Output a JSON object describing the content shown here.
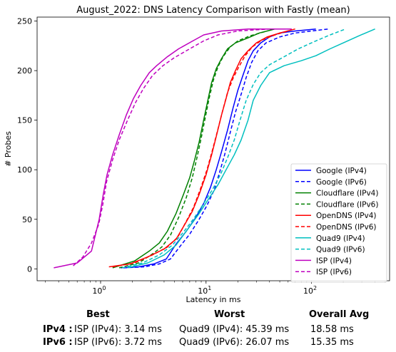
{
  "chart_data": {
    "type": "line",
    "title": "August_2022: DNS Latency Comparison with Fastly (mean)",
    "xlabel": "Latency in ms",
    "ylabel": "# Probes",
    "xscale": "log",
    "xlim": [
      0.25,
      550
    ],
    "ylim": [
      -12,
      254
    ],
    "x_ticks": [
      1,
      10,
      100
    ],
    "x_tick_labels": [
      "10^0",
      "10^1",
      "10^2"
    ],
    "y_ticks": [
      0,
      50,
      100,
      150,
      200,
      250
    ],
    "grid": false,
    "legend_position": "lower-right",
    "series": [
      {
        "name": "Google (IPv4)",
        "color": "#0000ff",
        "dash": "solid",
        "points": [
          [
            1.55,
            1
          ],
          [
            2.3,
            2
          ],
          [
            3.2,
            5
          ],
          [
            4.2,
            10
          ],
          [
            5.2,
            25
          ],
          [
            6.5,
            38
          ],
          [
            8,
            52
          ],
          [
            9.5,
            66
          ],
          [
            11,
            82
          ],
          [
            12.5,
            100
          ],
          [
            14,
            118
          ],
          [
            16,
            140
          ],
          [
            18,
            162
          ],
          [
            20,
            180
          ],
          [
            22.5,
            196
          ],
          [
            25,
            210
          ],
          [
            28,
            220
          ],
          [
            33,
            228
          ],
          [
            40,
            234
          ],
          [
            50,
            238
          ],
          [
            70,
            240
          ],
          [
            110,
            242
          ]
        ]
      },
      {
        "name": "Google (IPv6)",
        "color": "#0000ff",
        "dash": "dashed",
        "points": [
          [
            1.65,
            1
          ],
          [
            2.6,
            2
          ],
          [
            3.6,
            5
          ],
          [
            4.6,
            10
          ],
          [
            5.6,
            22
          ],
          [
            7,
            35
          ],
          [
            8.6,
            50
          ],
          [
            10.2,
            64
          ],
          [
            12,
            80
          ],
          [
            13.5,
            98
          ],
          [
            15,
            115
          ],
          [
            17,
            138
          ],
          [
            19,
            158
          ],
          [
            21.5,
            176
          ],
          [
            24,
            193
          ],
          [
            27,
            208
          ],
          [
            31,
            220
          ],
          [
            37,
            228
          ],
          [
            50,
            234
          ],
          [
            70,
            238
          ],
          [
            100,
            240
          ],
          [
            145,
            242
          ]
        ]
      },
      {
        "name": "Cloudflare (IPv4)",
        "color": "#008000",
        "dash": "solid",
        "points": [
          [
            1.3,
            1
          ],
          [
            2.1,
            8
          ],
          [
            2.9,
            18
          ],
          [
            3.6,
            26
          ],
          [
            4.3,
            38
          ],
          [
            5.2,
            56
          ],
          [
            6.1,
            75
          ],
          [
            7,
            92
          ],
          [
            7.8,
            110
          ],
          [
            8.6,
            128
          ],
          [
            9.4,
            148
          ],
          [
            10.3,
            168
          ],
          [
            11.3,
            188
          ],
          [
            12.5,
            202
          ],
          [
            14,
            212
          ],
          [
            16,
            222
          ],
          [
            19,
            228
          ],
          [
            25,
            233
          ],
          [
            32,
            238
          ],
          [
            45,
            242
          ]
        ]
      },
      {
        "name": "Cloudflare (IPv6)",
        "color": "#008000",
        "dash": "dashed",
        "points": [
          [
            1.5,
            1
          ],
          [
            2.3,
            6
          ],
          [
            3.1,
            15
          ],
          [
            3.8,
            22
          ],
          [
            4.6,
            34
          ],
          [
            5.5,
            52
          ],
          [
            6.5,
            72
          ],
          [
            7.4,
            92
          ],
          [
            8.2,
            112
          ],
          [
            9,
            132
          ],
          [
            9.8,
            152
          ],
          [
            10.7,
            172
          ],
          [
            11.7,
            190
          ],
          [
            13,
            204
          ],
          [
            14.5,
            214
          ],
          [
            17,
            224
          ],
          [
            20,
            230
          ],
          [
            26,
            235
          ],
          [
            38,
            240
          ]
        ]
      },
      {
        "name": "OpenDNS (IPv4)",
        "color": "#ff0000",
        "dash": "solid",
        "points": [
          [
            1.2,
            2
          ],
          [
            1.9,
            5
          ],
          [
            2.8,
            12
          ],
          [
            4,
            20
          ],
          [
            5.2,
            30
          ],
          [
            6.3,
            45
          ],
          [
            7.4,
            58
          ],
          [
            8.6,
            75
          ],
          [
            10,
            95
          ],
          [
            11.3,
            115
          ],
          [
            12.6,
            135
          ],
          [
            14,
            155
          ],
          [
            15.5,
            172
          ],
          [
            17,
            188
          ],
          [
            19,
            200
          ],
          [
            21.5,
            212
          ],
          [
            25,
            220
          ],
          [
            30,
            228
          ],
          [
            38,
            234
          ],
          [
            50,
            238
          ],
          [
            70,
            242
          ]
        ]
      },
      {
        "name": "OpenDNS (IPv6)",
        "color": "#ff0000",
        "dash": "dashed",
        "points": [
          [
            1.3,
            2
          ],
          [
            2.1,
            6
          ],
          [
            3.1,
            14
          ],
          [
            4.3,
            22
          ],
          [
            5.4,
            32
          ],
          [
            6.5,
            48
          ],
          [
            7.6,
            62
          ],
          [
            8.8,
            80
          ],
          [
            10.2,
            100
          ],
          [
            11.5,
            120
          ],
          [
            12.9,
            140
          ],
          [
            14.4,
            160
          ],
          [
            16,
            178
          ],
          [
            18,
            192
          ],
          [
            20.5,
            204
          ],
          [
            23.5,
            215
          ],
          [
            27.5,
            224
          ],
          [
            34,
            231
          ],
          [
            45,
            236
          ],
          [
            60,
            240
          ]
        ]
      },
      {
        "name": "Quad9 (IPv4)",
        "color": "#00bfbf",
        "dash": "solid",
        "points": [
          [
            1.8,
            1
          ],
          [
            2.8,
            6
          ],
          [
            4,
            14
          ],
          [
            5.2,
            24
          ],
          [
            6.7,
            40
          ],
          [
            8.5,
            55
          ],
          [
            10.5,
            70
          ],
          [
            13,
            85
          ],
          [
            15.5,
            100
          ],
          [
            18.5,
            115
          ],
          [
            21.5,
            130
          ],
          [
            25,
            150
          ],
          [
            28,
            170
          ],
          [
            33,
            185
          ],
          [
            40,
            198
          ],
          [
            55,
            205
          ],
          [
            80,
            210
          ],
          [
            110,
            215
          ],
          [
            150,
            222
          ],
          [
            200,
            228
          ],
          [
            280,
            235
          ],
          [
            400,
            242
          ]
        ]
      },
      {
        "name": "Quad9 (IPv6)",
        "color": "#00bfbf",
        "dash": "dashed",
        "points": [
          [
            1.6,
            1
          ],
          [
            2.5,
            6
          ],
          [
            3.6,
            14
          ],
          [
            4.8,
            24
          ],
          [
            6.2,
            38
          ],
          [
            7.8,
            52
          ],
          [
            9.5,
            66
          ],
          [
            11.5,
            80
          ],
          [
            13.8,
            96
          ],
          [
            16,
            112
          ],
          [
            18.5,
            130
          ],
          [
            21,
            150
          ],
          [
            24,
            170
          ],
          [
            28,
            186
          ],
          [
            33,
            198
          ],
          [
            40,
            206
          ],
          [
            55,
            214
          ],
          [
            75,
            222
          ],
          [
            110,
            230
          ],
          [
            150,
            236
          ],
          [
            210,
            242
          ]
        ]
      },
      {
        "name": "ISP (IPv4)",
        "color": "#bf00bf",
        "dash": "solid",
        "points": [
          [
            0.36,
            1
          ],
          [
            0.6,
            6
          ],
          [
            0.82,
            18
          ],
          [
            0.97,
            50
          ],
          [
            1.06,
            75
          ],
          [
            1.15,
            95
          ],
          [
            1.3,
            115
          ],
          [
            1.5,
            135
          ],
          [
            1.75,
            155
          ],
          [
            2.05,
            172
          ],
          [
            2.4,
            185
          ],
          [
            2.9,
            198
          ],
          [
            3.4,
            205
          ],
          [
            4.3,
            214
          ],
          [
            5.5,
            222
          ],
          [
            7.5,
            230
          ],
          [
            9.5,
            236
          ],
          [
            14,
            240
          ],
          [
            25,
            242
          ],
          [
            65,
            242
          ]
        ]
      },
      {
        "name": "ISP (IPv6)",
        "color": "#bf00bf",
        "dash": "dashed",
        "points": [
          [
            0.55,
            3
          ],
          [
            0.68,
            12
          ],
          [
            0.82,
            26
          ],
          [
            0.96,
            45
          ],
          [
            1.05,
            65
          ],
          [
            1.14,
            88
          ],
          [
            1.3,
            110
          ],
          [
            1.5,
            130
          ],
          [
            1.8,
            150
          ],
          [
            2.15,
            168
          ],
          [
            2.55,
            182
          ],
          [
            3.1,
            195
          ],
          [
            3.9,
            205
          ],
          [
            5,
            213
          ],
          [
            7,
            222
          ],
          [
            9.5,
            230
          ],
          [
            13,
            236
          ],
          [
            20,
            240
          ],
          [
            40,
            242
          ],
          [
            60,
            242
          ]
        ]
      }
    ]
  },
  "summary": {
    "headers": {
      "best": "Best",
      "worst": "Worst",
      "avg": "Overall Avg"
    },
    "rows": [
      {
        "label": "IPv4 :",
        "best": "ISP (IPv4): 3.14 ms",
        "worst": "Quad9 (IPv4): 45.39 ms",
        "avg": "18.58 ms"
      },
      {
        "label": "IPv6 :",
        "best": "ISP (IPv6): 3.72 ms",
        "worst": "Quad9 (IPv6): 26.07 ms",
        "avg": "15.35 ms"
      }
    ]
  }
}
